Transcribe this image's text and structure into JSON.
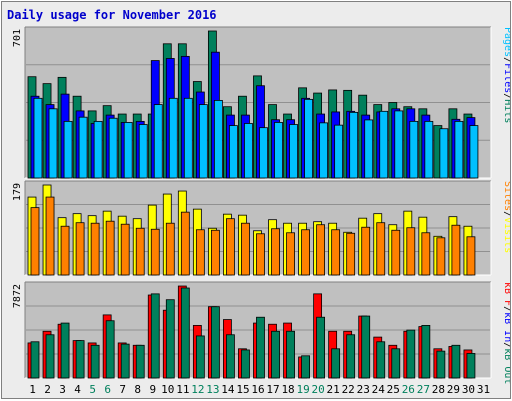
{
  "chart_data": {
    "type": "bar",
    "title": "Daily usage for November 2016",
    "days": [
      "1",
      "2",
      "3",
      "4",
      "5",
      "6",
      "7",
      "8",
      "9",
      "10",
      "11",
      "12",
      "13",
      "14",
      "15",
      "16",
      "17",
      "18",
      "19",
      "20",
      "21",
      "22",
      "23",
      "24",
      "25",
      "26",
      "27",
      "28",
      "29",
      "30",
      "31"
    ],
    "weekend_days": [
      "5",
      "6",
      "12",
      "13",
      "19",
      "20",
      "26",
      "27"
    ],
    "colors": {
      "title": "#0000cc",
      "plot_bg": "#c0c0c0",
      "grid": "#909090",
      "hits": "#00805c",
      "files": "#0000ff",
      "pages": "#00c0ff",
      "visits": "#ffff00",
      "sites": "#ff8000",
      "kb_f": "#ff0000",
      "kb_in": "#0000ff",
      "kb_out": "#00805c",
      "weekday_label": "#000000",
      "weekend_label": "#00805c"
    },
    "panels": [
      {
        "id": "hits-files-pages",
        "max_label": "701",
        "ylim": [
          0,
          701
        ],
        "legend": [
          {
            "text": "Pages",
            "color": "#00c0ff"
          },
          {
            "text": "Files",
            "color": "#0000ff"
          },
          {
            "text": "Hits",
            "color": "#00805c"
          }
        ],
        "series": [
          {
            "name": "Hits",
            "color": "#00805c",
            "values": [
              483,
              450,
              480,
              390,
              320,
              345,
              305,
              305,
              305,
              640,
              640,
              460,
              701,
              340,
              390,
              487,
              350,
              305,
              430,
              405,
              420,
              418,
              395,
              350,
              360,
              340,
              330,
              250,
              330,
              305,
              0
            ]
          },
          {
            "name": "Files",
            "color": "#0000ff",
            "values": [
              390,
              350,
              400,
              320,
              260,
              300,
              265,
              270,
              560,
              570,
              580,
              410,
              600,
              300,
              300,
              440,
              278,
              278,
              380,
              305,
              315,
              318,
              300,
              315,
              330,
              330,
              300,
              0,
              280,
              288,
              0
            ]
          },
          {
            "name": "Pages",
            "color": "#00c0ff",
            "values": [
              380,
              330,
              270,
              290,
              270,
              285,
              265,
              255,
              350,
              380,
              380,
              350,
              370,
              250,
              260,
              240,
              265,
              255,
              375,
              263,
              252,
              313,
              277,
              318,
              320,
              270,
              270,
              235,
              270,
              250,
              0
            ]
          }
        ]
      },
      {
        "id": "visits-sites",
        "max_label": "179",
        "ylim": [
          0,
          179
        ],
        "legend": [
          {
            "text": "Sites",
            "color": "#ff8000"
          },
          {
            "text": "Visits",
            "color": "#ffff00"
          }
        ],
        "series": [
          {
            "name": "Visits",
            "color": "#ffff00",
            "values": [
              155,
              179,
              114,
              122,
              118,
              127,
              117,
              112,
              139,
              161,
              167,
              131,
              93,
              121,
              119,
              88,
              110,
              103,
              103,
              106,
              103,
              85,
              113,
              122,
              100,
              127,
              115,
              77,
              116,
              97,
              0
            ]
          },
          {
            "name": "Sites",
            "color": "#ff8000",
            "values": [
              134,
              155,
              97,
              104,
              103,
              107,
              101,
              93,
              91,
              103,
              125,
              90,
              89,
              112,
              103,
              82,
              92,
              84,
              90,
              100,
              90,
              83,
              95,
              104,
              89,
              94,
              84,
              74,
              99,
              76,
              0
            ]
          }
        ]
      },
      {
        "id": "kbytes",
        "max_label": "7872",
        "ylim": [
          0,
          7872
        ],
        "legend": [
          {
            "text": "kB F",
            "color": "#ff0000"
          },
          {
            "text": "kB In",
            "color": "#0000ff"
          },
          {
            "text": "kB Out",
            "color": "#00805c"
          }
        ],
        "series": [
          {
            "name": "kB F",
            "color": "#ff0000",
            "values": [
              3000,
              4000,
              4600,
              3200,
              3000,
              5400,
              3000,
              2800,
              7100,
              5800,
              7870,
              4500,
              6100,
              5000,
              2500,
              4700,
              4600,
              4700,
              1800,
              7200,
              4000,
              4000,
              5300,
              3500,
              2800,
              4000,
              4400,
              2500,
              2700,
              2400,
              0
            ]
          },
          {
            "name": "kB Out",
            "color": "#00805c",
            "values": [
              3100,
              3700,
              4700,
              3200,
              2800,
              4900,
              2900,
              2800,
              7200,
              6700,
              7700,
              3600,
              6100,
              3700,
              2400,
              5200,
              4000,
              4000,
              1900,
              5200,
              2500,
              3700,
              5300,
              3100,
              2500,
              4100,
              4500,
              2300,
              2800,
              2100,
              0
            ]
          }
        ]
      }
    ]
  }
}
